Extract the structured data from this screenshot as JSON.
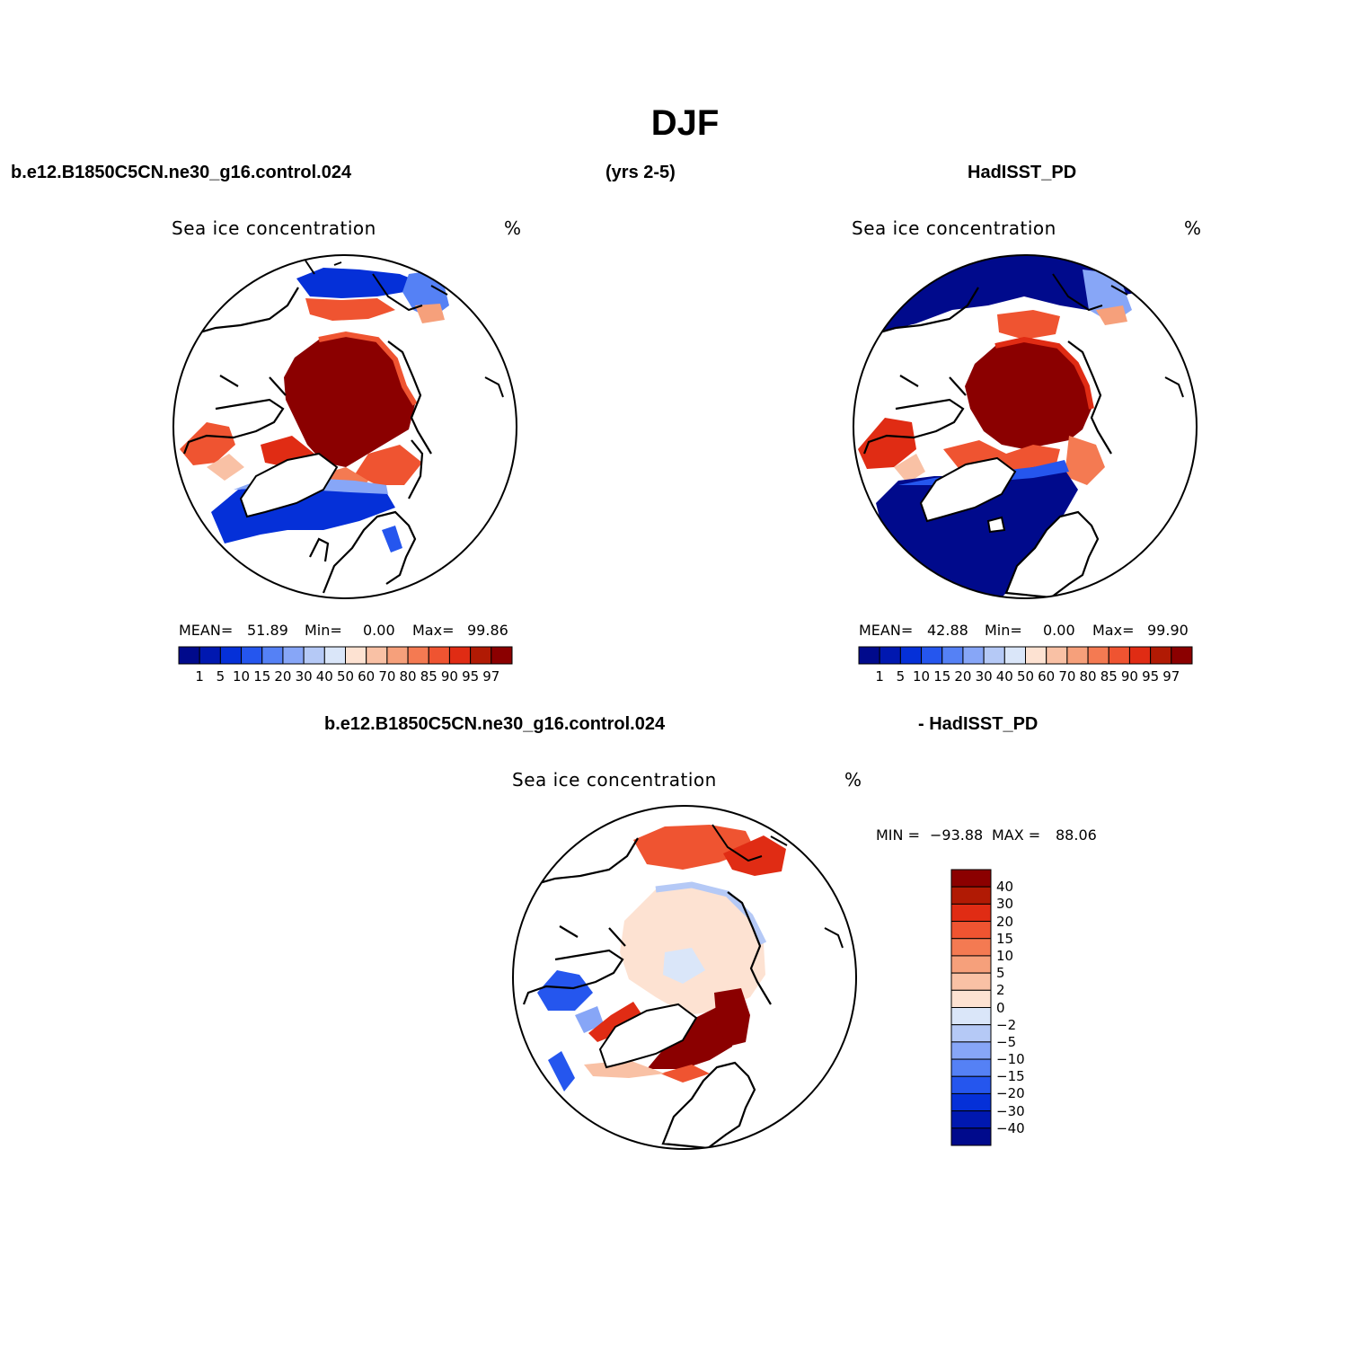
{
  "title": "DJF",
  "header": {
    "case_name": "b.e12.B1850C5CN.ne30_g16.control.024",
    "years": "(yrs 2-5)",
    "obs_name": "HadISST_PD",
    "diff_case_name": "b.e12.B1850C5CN.ne30_g16.control.024",
    "diff_obs_name": "- HadISST_PD"
  },
  "panels": [
    {
      "id": "model",
      "title": "Sea ice concentration",
      "units": "%",
      "stats": {
        "mean_label": "MEAN=",
        "mean": "51.89",
        "min_label": "Min=",
        "min": "0.00",
        "max_label": "Max=",
        "max": "99.86"
      }
    },
    {
      "id": "obs",
      "title": "Sea ice concentration",
      "units": "%",
      "stats": {
        "mean_label": "MEAN=",
        "mean": "42.88",
        "min_label": "Min=",
        "min": "0.00",
        "max_label": "Max=",
        "max": "99.90"
      }
    },
    {
      "id": "diff",
      "title": "Sea ice concentration",
      "units": "%",
      "stats": {
        "min_label": "MIN =",
        "min": "−93.88",
        "max_label": "MAX =",
        "max": "88.06"
      }
    }
  ],
  "colorbar_abs": {
    "labels": [
      "1",
      "5",
      "10",
      "15",
      "20",
      "30",
      "40",
      "50",
      "60",
      "70",
      "80",
      "85",
      "90",
      "95",
      "97"
    ],
    "colors": [
      "#000a8c",
      "#0018b0",
      "#0530d8",
      "#2556ee",
      "#5581f5",
      "#87a6f7",
      "#b5c9f6",
      "#dae6f9",
      "#fde2d2",
      "#f9c1a5",
      "#f6a07b",
      "#f47a52",
      "#ef5431",
      "#e02c14",
      "#b11a04",
      "#8b0000"
    ]
  },
  "colorbar_diff": {
    "labels": [
      "40",
      "30",
      "20",
      "15",
      "10",
      "5",
      "2",
      "0",
      "−2",
      "−5",
      "−10",
      "−15",
      "−20",
      "−30",
      "−40"
    ],
    "colors": [
      "#8b0000",
      "#b11a04",
      "#e02c14",
      "#ef5431",
      "#f47a52",
      "#f6a07b",
      "#f9c1a5",
      "#fde2d2",
      "#dae6f9",
      "#b5c9f6",
      "#87a6f7",
      "#5581f5",
      "#2556ee",
      "#0530d8",
      "#0018b0",
      "#000a8c"
    ]
  },
  "legend_colors": {
    "dark_red": "#8b0000",
    "dark_blue": "#000a8c",
    "pale": "#fde2d2"
  }
}
